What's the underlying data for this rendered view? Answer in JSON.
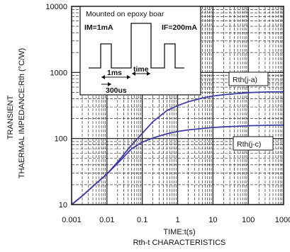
{
  "chart_data": {
    "type": "line",
    "xlabel": "TIME:t(s)",
    "ylabel_line1": "TRANSIENT",
    "ylabel_line2": "THAERMAL IMPEDANCE:Rth (°C/W)",
    "caption": "Rth-t CHARACTERISTICS",
    "xscale": "log",
    "yscale": "log",
    "xlim": [
      0.001,
      1000
    ],
    "ylim": [
      10,
      10000
    ],
    "x_ticks": [
      "0.001",
      "0.01",
      "0.1",
      "1",
      "10",
      "100",
      "1000"
    ],
    "y_ticks": [
      "10",
      "100",
      "1000",
      "10000"
    ],
    "grid": true,
    "line_color": "#3e3ea8",
    "series": [
      {
        "name": "Rth(j-a)",
        "points": [
          [
            0.001,
            10
          ],
          [
            0.002,
            13.5
          ],
          [
            0.005,
            21
          ],
          [
            0.01,
            29
          ],
          [
            0.02,
            44
          ],
          [
            0.05,
            80
          ],
          [
            0.1,
            120
          ],
          [
            0.2,
            180
          ],
          [
            0.5,
            265
          ],
          [
            1,
            315
          ],
          [
            2,
            360
          ],
          [
            5,
            410
          ],
          [
            10,
            440
          ],
          [
            20,
            460
          ],
          [
            50,
            480
          ],
          [
            100,
            495
          ],
          [
            300,
            505
          ],
          [
            1000,
            510
          ]
        ]
      },
      {
        "name": "Rth(j-c)",
        "points": [
          [
            0.001,
            10
          ],
          [
            0.002,
            13.5
          ],
          [
            0.005,
            21
          ],
          [
            0.01,
            29
          ],
          [
            0.02,
            42
          ],
          [
            0.05,
            70
          ],
          [
            0.1,
            88
          ],
          [
            0.2,
            102
          ],
          [
            0.5,
            118
          ],
          [
            1,
            128
          ],
          [
            2,
            135
          ],
          [
            5,
            142
          ],
          [
            10,
            147
          ],
          [
            20,
            150
          ],
          [
            50,
            153
          ],
          [
            100,
            156
          ],
          [
            300,
            158
          ],
          [
            1000,
            160
          ]
        ]
      }
    ],
    "inset": {
      "title": "Mounted on epoxy boar",
      "label_left": "IM=1mA",
      "label_right": "IF=200mA",
      "label_1ms": "1ms",
      "label_time": "time",
      "label_300us": "300us"
    }
  }
}
